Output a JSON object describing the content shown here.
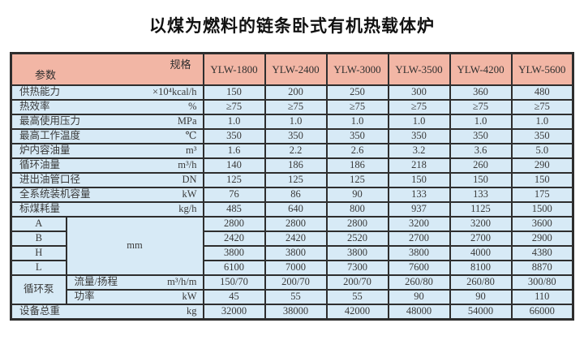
{
  "title": "以煤为燃料的链条卧式有机热载体炉",
  "colors": {
    "header_bg": "#f2b6a5",
    "body_bg": "#d7eaf6",
    "border": "#2e2e2e"
  },
  "table": {
    "corner": {
      "spec": "规格",
      "param": "参数"
    },
    "columns": [
      "YLW-1800",
      "YLW-2400",
      "YLW-3000",
      "YLW-3500",
      "YLW-4200",
      "YLW-5600"
    ],
    "rows": [
      {
        "label": "供热能力",
        "unit": "×10⁴kcal/h",
        "values": [
          "150",
          "200",
          "250",
          "300",
          "360",
          "480"
        ]
      },
      {
        "label": "热效率",
        "unit": "%",
        "values": [
          "≥75",
          "≥75",
          "≥75",
          "≥75",
          "≥75",
          "≥75"
        ]
      },
      {
        "label": "最高使用压力",
        "unit": "MPa",
        "values": [
          "1.0",
          "1.0",
          "1.0",
          "1.0",
          "1.0",
          "1.0"
        ]
      },
      {
        "label": "最高工作温度",
        "unit": "℃",
        "values": [
          "350",
          "350",
          "350",
          "350",
          "350",
          "350"
        ]
      },
      {
        "label": "炉内容油量",
        "unit": "m³",
        "values": [
          "1.6",
          "2.2",
          "2.6",
          "3.2",
          "3.6",
          "5.0"
        ]
      },
      {
        "label": "循环油量",
        "unit": "m³/h",
        "values": [
          "140",
          "186",
          "186",
          "218",
          "260",
          "290"
        ]
      },
      {
        "label": "进出油管口径",
        "unit": "DN",
        "values": [
          "125",
          "125",
          "125",
          "150",
          "150",
          "150"
        ]
      },
      {
        "label": "全系统装机容量",
        "unit": "kW",
        "values": [
          "76",
          "86",
          "90",
          "133",
          "133",
          "175"
        ]
      },
      {
        "label": "标煤耗量",
        "unit": "kg/h",
        "values": [
          "485",
          "640",
          "800",
          "937",
          "1125",
          "1500"
        ]
      }
    ],
    "dimensions": {
      "unit": "mm",
      "rows": [
        {
          "label": "A",
          "values": [
            "2800",
            "2800",
            "2800",
            "3200",
            "3200",
            "3600"
          ]
        },
        {
          "label": "B",
          "values": [
            "2420",
            "2420",
            "2520",
            "2700",
            "2700",
            "2900"
          ]
        },
        {
          "label": "H",
          "values": [
            "3800",
            "3800",
            "3800",
            "3800",
            "4000",
            "4380"
          ]
        },
        {
          "label": "L",
          "values": [
            "6100",
            "7000",
            "7300",
            "7600",
            "8100",
            "8870"
          ]
        }
      ]
    },
    "pump": {
      "label": "循环泵",
      "rows": [
        {
          "label": "流量/扬程",
          "unit": "m³/h/m",
          "values": [
            "150/70",
            "200/70",
            "200/70",
            "260/80",
            "260/80",
            "300/80"
          ]
        },
        {
          "label": "功率",
          "unit": "kW",
          "values": [
            "45",
            "55",
            "55",
            "90",
            "90",
            "110"
          ]
        }
      ]
    },
    "total": {
      "label": "设备总重",
      "unit": "kg",
      "values": [
        "32000",
        "38000",
        "42000",
        "48000",
        "54000",
        "66000"
      ]
    }
  }
}
